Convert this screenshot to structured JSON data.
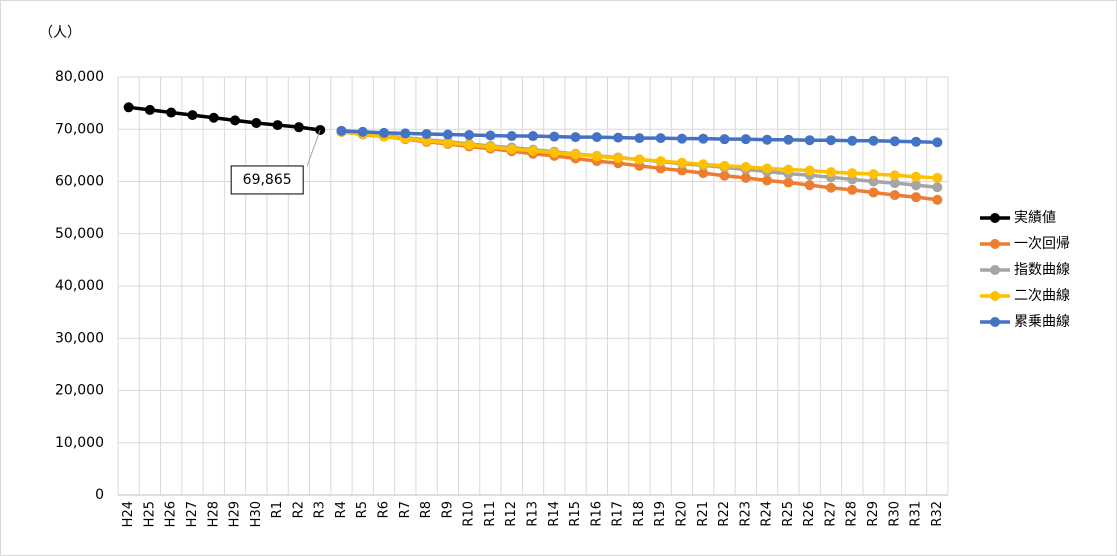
{
  "chart_data": {
    "type": "line",
    "y_unit_label": "（人）",
    "categories": [
      "H24",
      "H25",
      "H26",
      "H27",
      "H28",
      "H29",
      "H30",
      "R1",
      "R2",
      "R3",
      "R4",
      "R5",
      "R6",
      "R7",
      "R8",
      "R9",
      "R10",
      "R11",
      "R12",
      "R13",
      "R14",
      "R15",
      "R16",
      "R17",
      "R18",
      "R19",
      "R20",
      "R21",
      "R22",
      "R23",
      "R24",
      "R25",
      "R26",
      "R27",
      "R28",
      "R29",
      "R30",
      "R31",
      "R32"
    ],
    "ylim": [
      0,
      80000
    ],
    "yticks": [
      0,
      {
        "value": 10000,
        "label": "10,000"
      },
      {
        "value": 20000,
        "label": "20,000"
      },
      {
        "value": 30000,
        "label": "30,000"
      },
      {
        "value": 40000,
        "label": "40,000"
      },
      {
        "value": 50000,
        "label": "50,000"
      },
      {
        "value": 60000,
        "label": "60,000"
      },
      {
        "value": 70000,
        "label": "70,000"
      },
      {
        "value": 80000,
        "label": "80,000"
      }
    ],
    "grid": true,
    "legend": "right",
    "series": [
      {
        "name": "実績値",
        "color": "#000000",
        "values": [
          74200,
          73700,
          73200,
          72700,
          72200,
          71700,
          71200,
          70800,
          70400,
          69865,
          null,
          null,
          null,
          null,
          null,
          null,
          null,
          null,
          null,
          null,
          null,
          null,
          null,
          null,
          null,
          null,
          null,
          null,
          null,
          null,
          null,
          null,
          null,
          null,
          null,
          null,
          null,
          null,
          null
        ],
        "value_labels": [
          null,
          null,
          null,
          null,
          null,
          null,
          null,
          null,
          null,
          "69,865",
          null,
          null,
          null,
          null,
          null,
          null,
          null,
          null,
          null,
          null,
          null,
          null,
          null,
          null,
          null,
          null,
          null,
          null,
          null,
          null,
          null,
          null,
          null,
          null,
          null,
          null,
          null,
          null,
          null
        ]
      },
      {
        "name": "一次回帰",
        "color": "#ed7d31",
        "values": [
          null,
          null,
          null,
          null,
          null,
          null,
          null,
          null,
          null,
          null,
          69500,
          69000,
          68600,
          68100,
          67600,
          67200,
          66700,
          66300,
          65800,
          65300,
          64900,
          64400,
          63900,
          63500,
          63000,
          62500,
          62100,
          61600,
          61100,
          60700,
          60200,
          59800,
          59300,
          58800,
          58400,
          57900,
          57400,
          57000,
          56500
        ]
      },
      {
        "name": "指数曲線",
        "color": "#a5a5a5",
        "values": [
          null,
          null,
          null,
          null,
          null,
          null,
          null,
          null,
          null,
          null,
          69500,
          69100,
          68700,
          68400,
          68000,
          67600,
          67200,
          66800,
          66500,
          66100,
          65700,
          65300,
          64900,
          64600,
          64200,
          63800,
          63400,
          63100,
          62700,
          62300,
          61900,
          61500,
          61200,
          60800,
          60400,
          60000,
          59700,
          59300,
          58900
        ]
      },
      {
        "name": "二次曲線",
        "color": "#ffc000",
        "values": [
          null,
          null,
          null,
          null,
          null,
          null,
          null,
          null,
          null,
          null,
          69500,
          69100,
          68600,
          68200,
          67800,
          67400,
          67000,
          66600,
          66200,
          65900,
          65500,
          65200,
          64800,
          64500,
          64200,
          63900,
          63600,
          63300,
          63000,
          62800,
          62500,
          62300,
          62100,
          61800,
          61600,
          61400,
          61200,
          60900,
          60700
        ]
      },
      {
        "name": "累乗曲線",
        "color": "#4472c4",
        "values": [
          null,
          null,
          null,
          null,
          null,
          null,
          null,
          null,
          null,
          null,
          69700,
          69500,
          69300,
          69200,
          69100,
          69000,
          68900,
          68800,
          68700,
          68700,
          68600,
          68500,
          68500,
          68400,
          68300,
          68300,
          68200,
          68200,
          68100,
          68100,
          68000,
          68000,
          67900,
          67900,
          67800,
          67800,
          67700,
          67600,
          67500
        ]
      }
    ]
  }
}
